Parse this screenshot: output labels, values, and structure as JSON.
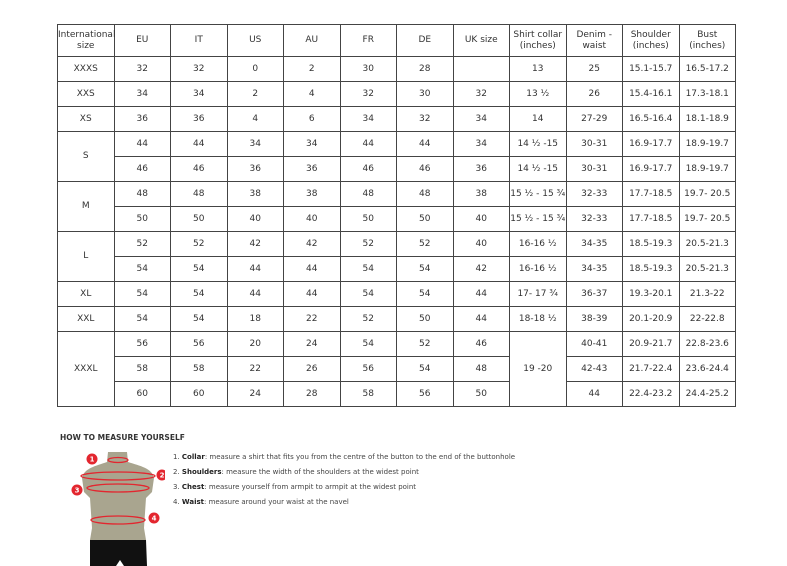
{
  "table": {
    "headers": [
      "International size",
      "EU",
      "IT",
      "US",
      "AU",
      "FR",
      "DE",
      "UK size",
      "Shirt collar (inches)",
      "Denim - waist",
      "Shoulder (inches)",
      "Bust (inches)"
    ],
    "groups": [
      {
        "size": "XXXS",
        "rows": [
          [
            "32",
            "32",
            "0",
            "2",
            "30",
            "28",
            "",
            "13",
            "25",
            "15.1-15.7",
            "16.5-17.2"
          ]
        ]
      },
      {
        "size": "XXS",
        "rows": [
          [
            "34",
            "34",
            "2",
            "4",
            "32",
            "30",
            "32",
            "13 ½",
            "26",
            "15.4-16.1",
            "17.3-18.1"
          ]
        ]
      },
      {
        "size": "XS",
        "rows": [
          [
            "36",
            "36",
            "4",
            "6",
            "34",
            "32",
            "34",
            "14",
            "27-29",
            "16.5-16.4",
            "18.1-18.9"
          ]
        ]
      },
      {
        "size": "S",
        "rows": [
          [
            "44",
            "44",
            "34",
            "34",
            "44",
            "44",
            "34",
            "14 ½ -15",
            "30-31",
            "16.9-17.7",
            "18.9-19.7"
          ],
          [
            "46",
            "46",
            "36",
            "36",
            "46",
            "46",
            "36",
            "14 ½ -15",
            "30-31",
            "16.9-17.7",
            "18.9-19.7"
          ]
        ]
      },
      {
        "size": "M",
        "rows": [
          [
            "48",
            "48",
            "38",
            "38",
            "48",
            "48",
            "38",
            "15 ½ - 15 ¾",
            "32-33",
            "17.7-18.5",
            "19.7- 20.5"
          ],
          [
            "50",
            "50",
            "40",
            "40",
            "50",
            "50",
            "40",
            "15 ½ - 15 ¾",
            "32-33",
            "17.7-18.5",
            "19.7- 20.5"
          ]
        ]
      },
      {
        "size": "L",
        "rows": [
          [
            "52",
            "52",
            "42",
            "42",
            "52",
            "52",
            "40",
            "16-16 ½",
            "34-35",
            "18.5-19.3",
            "20.5-21.3"
          ],
          [
            "54",
            "54",
            "44",
            "44",
            "54",
            "54",
            "42",
            "16-16 ½",
            "34-35",
            "18.5-19.3",
            "20.5-21.3"
          ]
        ]
      },
      {
        "size": "XL",
        "rows": [
          [
            "54",
            "54",
            "44",
            "44",
            "54",
            "54",
            "44",
            "17- 17 ¾",
            "36-37",
            "19.3-20.1",
            "21.3-22"
          ]
        ]
      },
      {
        "size": "XXL",
        "rows": [
          [
            "54",
            "54",
            "18",
            "22",
            "52",
            "50",
            "44",
            "18-18 ½",
            "38-39",
            "20.1-20.9",
            "22-22.8"
          ]
        ]
      },
      {
        "size": "XXXL",
        "rows": [
          [
            "56",
            "56",
            "20",
            "24",
            "54",
            "52",
            "46",
            "19 -20",
            "40-41",
            "20.9-21.7",
            "22.8-23.6"
          ],
          [
            "58",
            "58",
            "22",
            "26",
            "56",
            "54",
            "48",
            null,
            "42-43",
            "21.7-22.4",
            "23.6-24.4"
          ],
          [
            "60",
            "60",
            "24",
            "28",
            "58",
            "56",
            "50",
            null,
            "44",
            "22.4-23.2",
            "24.4-25.2"
          ]
        ]
      }
    ]
  },
  "howto": {
    "title": "HOW TO MEASURE YOURSELF",
    "steps": [
      {
        "num": "1.",
        "term": "Collar",
        "text": ": measure a shirt that fits you from the centre of the button to the end of the buttonhole"
      },
      {
        "num": "2.",
        "term": "Shoulders",
        "text": ": measure the width of the shoulders at the widest point"
      },
      {
        "num": "3.",
        "term": "Chest",
        "text": ": measure yourself from armpit to armpit at the widest point"
      },
      {
        "num": "4.",
        "term": "Waist",
        "text": ": measure around your waist at the navel"
      }
    ],
    "markers": [
      "1",
      "2",
      "3",
      "4"
    ]
  },
  "colors": {
    "accent": "#e3262f",
    "torso": "#a9a58f",
    "shorts": "#111111",
    "border": "#444444"
  }
}
